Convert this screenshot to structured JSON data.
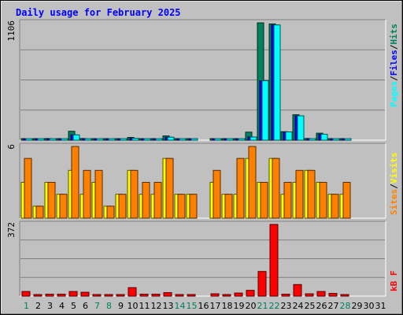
{
  "title": "Daily usage for February 2025",
  "colors": {
    "title": "#0000ff",
    "pages": "#00ffff",
    "files": "#0000ff",
    "hits": "#00805c",
    "sites": "#ff8000",
    "visits": "#ffff00",
    "kbytes": "#ff0000",
    "weekday_label": "#000000",
    "weekend_label": "#00805c",
    "separator": "#000000"
  },
  "labels": {
    "pages": "Pages",
    "files": "Files",
    "hits": "Hits",
    "sites": "Sites",
    "visits": "Visits",
    "kbytes": "kB F",
    "slash": "/"
  },
  "chart_data": [
    {
      "type": "bar",
      "panel": "hits-files-pages",
      "categories": [
        "1",
        "2",
        "3",
        "4",
        "5",
        "6",
        "7",
        "8",
        "9",
        "10",
        "11",
        "12",
        "13",
        "14",
        "15",
        "16",
        "17",
        "18",
        "19",
        "20",
        "21",
        "22",
        "23",
        "24",
        "25",
        "26",
        "27",
        "28",
        "29",
        "30",
        "31"
      ],
      "ymax_label": "1106",
      "ylim": [
        0,
        1106
      ],
      "series": [
        {
          "name": "Hits",
          "values": [
            14,
            10,
            16,
            10,
            84,
            16,
            10,
            10,
            10,
            26,
            10,
            10,
            40,
            10,
            10,
            0,
            10,
            10,
            10,
            76,
            1106,
            1096,
            80,
            240,
            16,
            66,
            10,
            10,
            0,
            0,
            0
          ]
        },
        {
          "name": "Files",
          "values": [
            8,
            5,
            10,
            5,
            50,
            10,
            5,
            5,
            5,
            18,
            5,
            5,
            28,
            5,
            5,
            0,
            5,
            5,
            5,
            30,
            560,
            1086,
            78,
            230,
            10,
            56,
            5,
            5,
            0,
            0,
            0
          ]
        },
        {
          "name": "Pages",
          "values": [
            8,
            5,
            10,
            5,
            50,
            10,
            5,
            5,
            5,
            18,
            5,
            5,
            28,
            5,
            5,
            0,
            5,
            5,
            5,
            30,
            560,
            1086,
            78,
            230,
            10,
            56,
            5,
            5,
            0,
            0,
            0
          ]
        }
      ]
    },
    {
      "type": "bar",
      "panel": "visits-sites",
      "categories": [
        "1",
        "2",
        "3",
        "4",
        "5",
        "6",
        "7",
        "8",
        "9",
        "10",
        "11",
        "12",
        "13",
        "14",
        "15",
        "16",
        "17",
        "18",
        "19",
        "20",
        "21",
        "22",
        "23",
        "24",
        "25",
        "26",
        "27",
        "28",
        "29",
        "30",
        "31"
      ],
      "ymax_label": "6",
      "ylim": [
        0,
        6
      ],
      "series": [
        {
          "name": "Visits",
          "values": [
            3,
            1,
            3,
            2,
            4,
            2,
            3,
            1,
            2,
            4,
            2,
            2,
            5,
            2,
            2,
            0,
            3,
            2,
            2,
            5,
            3,
            5,
            2,
            3,
            4,
            3,
            2,
            2,
            0,
            0,
            0
          ]
        },
        {
          "name": "Sites",
          "values": [
            5,
            1,
            3,
            2,
            6,
            4,
            4,
            1,
            2,
            4,
            3,
            3,
            5,
            2,
            2,
            0,
            4,
            2,
            5,
            6,
            3,
            5,
            3,
            4,
            4,
            3,
            2,
            3,
            0,
            0,
            0
          ]
        }
      ]
    },
    {
      "type": "bar",
      "panel": "kbytes",
      "categories": [
        "1",
        "2",
        "3",
        "4",
        "5",
        "6",
        "7",
        "8",
        "9",
        "10",
        "11",
        "12",
        "13",
        "14",
        "15",
        "16",
        "17",
        "18",
        "19",
        "20",
        "21",
        "22",
        "23",
        "24",
        "25",
        "26",
        "27",
        "28",
        "29",
        "30",
        "31"
      ],
      "ymax_label": "372",
      "ylim": [
        0,
        372
      ],
      "series": [
        {
          "name": "kB F",
          "values": [
            24,
            5,
            10,
            10,
            24,
            20,
            8,
            4,
            8,
            44,
            10,
            10,
            18,
            4,
            4,
            0,
            12,
            8,
            16,
            30,
            128,
            372,
            10,
            60,
            12,
            24,
            14,
            6,
            0,
            0,
            0
          ]
        }
      ]
    }
  ],
  "weekend_days": [
    1,
    7,
    8,
    14,
    15,
    21,
    22,
    28
  ]
}
